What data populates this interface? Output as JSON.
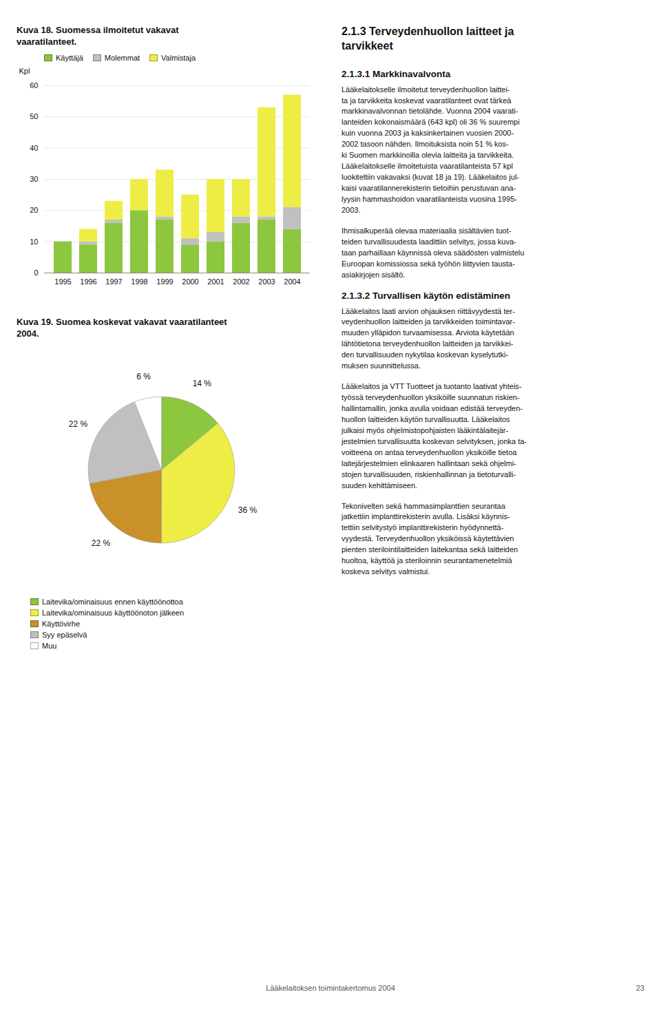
{
  "chart_data": [
    {
      "type": "bar",
      "title": "Kuva 18. Suomessa ilmoitetut vakavat\nvaaratilanteet.",
      "ylabel": "Kpl",
      "categories": [
        "1995",
        "1996",
        "1997",
        "1998",
        "1999",
        "2000",
        "2001",
        "2002",
        "2003",
        "2004"
      ],
      "series": [
        {
          "name": "Käyttäjä",
          "color": "#8DC63F",
          "values": [
            10,
            9,
            16,
            20,
            17,
            9,
            10,
            16,
            17,
            14
          ]
        },
        {
          "name": "Molemmat",
          "color": "#C0C0C0",
          "values": [
            0,
            1,
            1,
            0,
            1,
            2,
            3,
            2,
            1,
            7
          ]
        },
        {
          "name": "Valmistaja",
          "color": "#EEED45",
          "values": [
            0,
            4,
            6,
            10,
            15,
            14,
            17,
            12,
            35,
            36
          ]
        }
      ],
      "stacked": true,
      "ylim": [
        0,
        60
      ],
      "yticks": [
        0,
        10,
        20,
        30,
        40,
        50,
        60
      ],
      "grid": true,
      "legend": "top"
    },
    {
      "type": "pie",
      "title": "Kuva 19. Suomea koskevat vakavat vaaratilanteet\n2004.",
      "categories": [
        "Laitevika/ominaisuus ennen käyttöönottoa",
        "Laitevika/ominaisuus käyttöönoton jälkeen",
        "Käyttövirhe",
        "Syy epäselvä",
        "Muu"
      ],
      "values": [
        14,
        36,
        22,
        22,
        6
      ],
      "value_labels": [
        "14 %",
        "36 %",
        "22 %",
        "22 %",
        "6 %"
      ],
      "colors": [
        "#8DC63F",
        "#EEED45",
        "#C8912A",
        "#C0C0C0",
        "#FFFFFF"
      ],
      "data_labels": true,
      "legend": "bottom"
    }
  ],
  "annotations": [
    {
      "heading": "2.1.3 Terveydenhuollon laitteet ja\ntarvikkeet"
    },
    {
      "heading": "2.1.3.1 Markkinavalvonta"
    },
    {
      "text": "Lääkelaitokselle ilmoitetut terveydenhuollon laittei-\nta ja tarvikkeita koskevat vaaratilanteet ovat tärkeä\nmarkkinavalvonnan tietolähde. Vuonna 2004 vaarati-\nlanteiden kokonaismäärä (643 kpl) oli 36 % suurempi\nkuin vuonna 2003 ja kaksinkertainen vuosien 2000-\n2002 tasoon nähden. Ilmoituksista noin 51 % kos-\nki Suomen markkinoilla olevia laitteita ja tarvikkeita.\nLääkelaitokselle ilmoitetuista vaaratilanteista 57 kpl\nluokiteltiin vakavaksi (kuvat 18 ja 19). Lääkelaitos jul-\nkaisi vaaratilannerekisterin tietoihin perustuvan ana-\nlyysin hammashoidon vaaratilanteista vuosina 1995-\n2003."
    },
    {
      "text": "Ihmisalkuperää olevaa materiaalia sisältävien tuot-\nteiden turvallisuudesta laadittiin selvitys, jossa kuva-\ntaan parhaillaan käynnissä oleva säädösten valmistelu\nEuroopan komissiossa sekä työhön liittyvien tausta-\nasiakirjojen sisältö."
    },
    {
      "heading": "2.1.3.2 Turvallisen käytön edistäminen"
    },
    {
      "text": "Lääkelaitos laati arvion ohjauksen riittävyydestä ter-\nveydenhuollon laitteiden ja tarvikkeiden toimintavar-\nmuuden ylläpidon turvaamisessa. Arviota käytetään\nlähtötietona terveydenhuollon laitteiden ja tarvikkei-\nden turvallisuuden nykytilaa koskevan kyselytutki-\nmuksen suunnittelussa."
    },
    {
      "text": "Lääkelaitos ja VTT Tuotteet ja tuotanto laativat yhteis-\ntyössä terveydenhuollon yksiköille suunnatun riskien-\nhallintamallin, jonka avulla voidaan edistää terveyden-\nhuollon laitteiden käytön turvallisuutta. Lääkelaitos\njulkaisi myös ohjelmistopohjaisten lääkintälaitejär-\njestelmien turvallisuutta koskevan selvityksen, jonka ta-\nvoitteena on antaa terveydenhuollon yksiköille tietoa\nlaitejärjestelmien elinkaaren hallintaan sekä ohjelmi-\nstojen turvallisuuden, riskienhallinnan ja tietoturvalli-\nsuuden kehittämiseen."
    },
    {
      "text": "Tekonivelten sekä hammasimplanttien seurantaa\njatkettiin implanttirekisterin avulla. Lisäksi käynnis-\ntettiin selvitystyö implanttirekisterin hyödynnettä-\nvyydestä. Terveydenhuollon yksiköissä käytettävien\npienten sterilointilaitteiden laitekantaa sekä laitteiden\nhuoltoa, käyttöä ja steriloinnin seurantamenetelmiä\nkoskeva selvitys valmistui."
    }
  ],
  "footer": "Lääkelaitoksen toimintakertomus 2004",
  "page": "23"
}
